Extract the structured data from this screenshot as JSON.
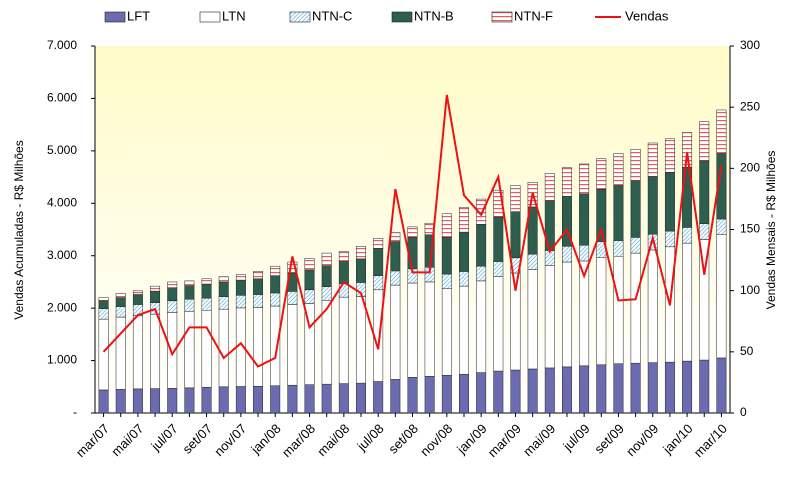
{
  "chart_data": {
    "type": "bar",
    "stacked": true,
    "categories": [
      "mar/07",
      null,
      "mai/07",
      null,
      "jul/07",
      null,
      "set/07",
      null,
      "nov/07",
      null,
      "jan/08",
      null,
      "mar/08",
      null,
      "mai/08",
      null,
      "jul/08",
      null,
      "set/08",
      null,
      "nov/08",
      null,
      "jan/09",
      null,
      "mar/09",
      null,
      "mai/09",
      null,
      "jul/09",
      null,
      "set/09",
      null,
      "nov/09",
      null,
      "jan/10",
      null,
      "mar/10"
    ],
    "ylabel": "Vendas Acumuladas - R$ Milhões",
    "y2label": "Vendas Mensais - R$ Milhões",
    "ylim": [
      0,
      7000
    ],
    "yticks": [
      {
        "value": 0,
        "label": "-"
      },
      {
        "value": 1000,
        "label": "1.000"
      },
      {
        "value": 2000,
        "label": "2.000"
      },
      {
        "value": 3000,
        "label": "3.000"
      },
      {
        "value": 4000,
        "label": "4.000"
      },
      {
        "value": 5000,
        "label": "5.000"
      },
      {
        "value": 6000,
        "label": "6.000"
      },
      {
        "value": 7000,
        "label": "7.000"
      }
    ],
    "y2lim": [
      0,
      300
    ],
    "y2ticks": [
      0,
      50,
      100,
      150,
      200,
      250,
      300
    ],
    "legend": "top",
    "series": [
      {
        "name": "LFT",
        "color": "#6b6bb0",
        "values": [
          440,
          450,
          460,
          465,
          470,
          480,
          490,
          500,
          505,
          510,
          520,
          530,
          540,
          550,
          560,
          570,
          600,
          640,
          680,
          700,
          720,
          740,
          770,
          800,
          820,
          840,
          860,
          880,
          900,
          920,
          940,
          950,
          960,
          970,
          990,
          1010,
          1050
        ]
      },
      {
        "name": "LTN",
        "color": "#ffffff",
        "values": [
          1350,
          1380,
          1400,
          1420,
          1450,
          1460,
          1470,
          1480,
          1500,
          1500,
          1520,
          1540,
          1550,
          1600,
          1650,
          1650,
          1750,
          1800,
          1800,
          1800,
          1650,
          1680,
          1750,
          1800,
          1850,
          1900,
          1950,
          2000,
          2000,
          2050,
          2050,
          2100,
          2150,
          2200,
          2250,
          2300,
          2350
        ]
      },
      {
        "name": "NTN-C",
        "color": "#8fc8e8",
        "hatch": "diagonal",
        "values": [
          200,
          200,
          210,
          220,
          220,
          230,
          230,
          240,
          240,
          250,
          250,
          250,
          260,
          260,
          260,
          270,
          270,
          270,
          270,
          280,
          280,
          280,
          280,
          290,
          290,
          290,
          290,
          300,
          300,
          300,
          300,
          300,
          300,
          300,
          300,
          300,
          300
        ]
      },
      {
        "name": "NTN-B",
        "color": "#2e5e4e",
        "values": [
          150,
          170,
          190,
          220,
          250,
          260,
          270,
          280,
          290,
          300,
          330,
          350,
          380,
          400,
          420,
          450,
          520,
          560,
          600,
          620,
          700,
          750,
          800,
          850,
          880,
          900,
          950,
          950,
          980,
          1000,
          1050,
          1080,
          1100,
          1120,
          1150,
          1200,
          1250
        ]
      },
      {
        "name": "NTN-F",
        "color": "#e06060",
        "hatch": "horizontal",
        "values": [
          60,
          80,
          70,
          95,
          110,
          90,
          100,
          100,
          105,
          140,
          180,
          210,
          220,
          240,
          190,
          240,
          190,
          170,
          200,
          220,
          450,
          470,
          480,
          510,
          500,
          470,
          520,
          550,
          570,
          580,
          610,
          600,
          640,
          640,
          660,
          750,
          830
        ]
      },
      {
        "name": "Vendas",
        "type": "line",
        "axis": "y2",
        "color": "#ee1111",
        "values": [
          50,
          65,
          80,
          85,
          48,
          70,
          70,
          45,
          57,
          38,
          45,
          128,
          70,
          85,
          107,
          98,
          52,
          183,
          115,
          115,
          260,
          178,
          162,
          193,
          100,
          180,
          132,
          150,
          112,
          150,
          92,
          93,
          143,
          88,
          213,
          113,
          203
        ]
      }
    ]
  }
}
